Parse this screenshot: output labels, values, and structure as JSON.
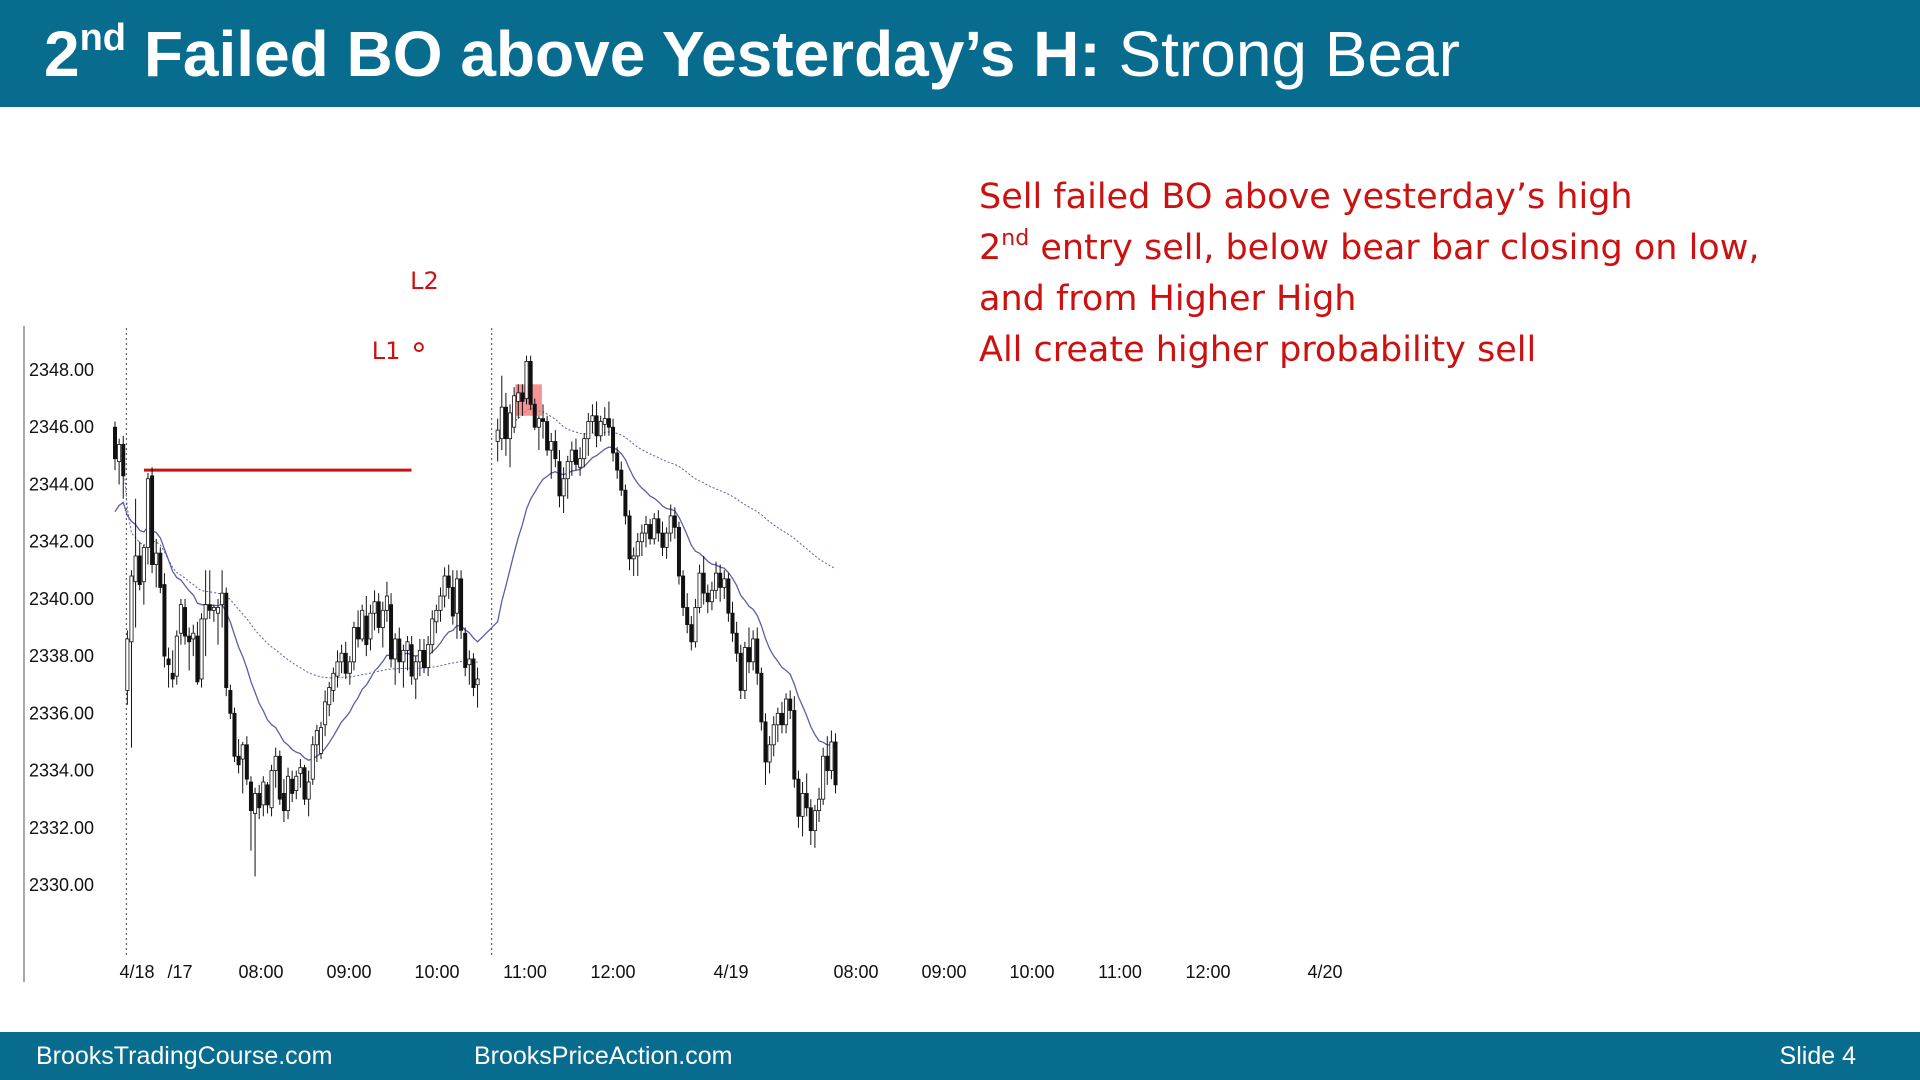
{
  "title": {
    "bold_prefix": "2",
    "bold_sup": "nd",
    "bold_main": " Failed BO above Yesterday’s H:",
    "normal": " Strong Bear"
  },
  "annotation": {
    "line1": "Sell failed BO above yesterday’s high",
    "line2_prefix": "2",
    "line2_sup": "nd",
    "line2_rest": " entry sell, below bear bar closing on low,",
    "line3": "and from Higher High",
    "line4": "All create higher probability sell"
  },
  "footer": {
    "left": "BrooksTradingCourse.com",
    "center": "BrooksPriceAction.com",
    "right": "Slide  4"
  },
  "colors": {
    "header_bg": "#086c8f",
    "annotation_red": "#cc1111",
    "ema_line": "#5b5fa8",
    "highlight_box": "#f07070"
  },
  "chart_data": {
    "type": "candlestick",
    "title": "",
    "xlabel": "",
    "ylabel": "",
    "ylim": [
      2328.0,
      2352.0
    ],
    "y_ticks": [
      "2348.00",
      "2346.00",
      "2344.00",
      "2342.00",
      "2340.00",
      "2338.00",
      "2336.00",
      "2334.00",
      "2332.00",
      "2330.00"
    ],
    "x_ticks": [
      "4/18",
      "/17",
      "08:00",
      "09:00",
      "10:00",
      "11:00",
      "12:00",
      "4/19",
      "08:00",
      "09:00",
      "10:00",
      "11:00",
      "12:00",
      "4/20"
    ],
    "markers": [
      {
        "label": "L1",
        "bar": 73
      },
      {
        "label": "L2",
        "bar": 76
      }
    ],
    "yesterday_high_line": {
      "value": 2344.5,
      "from_bar": 8,
      "to_bar": 71
    },
    "sessions": [
      {
        "label": "4/18",
        "ohlc": [
          [
            2346.0,
            2346.2,
            2344.5,
            2344.9
          ],
          [
            2344.8,
            2345.6,
            2344.0,
            2345.4
          ],
          [
            2345.4,
            2345.7,
            2343.5,
            2344.3
          ],
          [
            2336.8,
            2338.9,
            2336.3,
            2338.6
          ],
          [
            2338.5,
            2341.0,
            2334.8,
            2340.8
          ],
          [
            2340.6,
            2343.5,
            2339.0,
            2341.5
          ],
          [
            2341.5,
            2342.0,
            2340.3,
            2340.5
          ],
          [
            2340.6,
            2341.9,
            2339.8,
            2341.8
          ],
          [
            2341.8,
            2344.4,
            2341.2,
            2344.2
          ],
          [
            2344.3,
            2344.6,
            2340.9,
            2341.2
          ],
          [
            2341.2,
            2342.1,
            2340.4,
            2341.6
          ],
          [
            2341.6,
            2341.8,
            2340.2,
            2340.4
          ],
          [
            2340.5,
            2340.9,
            2337.6,
            2338.0
          ],
          [
            2337.9,
            2338.3,
            2336.9,
            2337.7
          ],
          [
            2337.4,
            2338.2,
            2336.9,
            2337.2
          ],
          [
            2337.3,
            2338.9,
            2337.0,
            2338.7
          ],
          [
            2338.8,
            2340.0,
            2338.4,
            2339.8
          ],
          [
            2339.7,
            2340.0,
            2338.4,
            2338.7
          ],
          [
            2338.7,
            2339.0,
            2337.5,
            2338.5
          ],
          [
            2338.6,
            2339.1,
            2338.0,
            2338.8
          ],
          [
            2338.7,
            2339.2,
            2337.0,
            2337.1
          ],
          [
            2337.2,
            2339.5,
            2336.9,
            2339.3
          ],
          [
            2339.3,
            2341.0,
            2338.0,
            2339.8
          ],
          [
            2339.8,
            2341.0,
            2339.3,
            2339.6
          ],
          [
            2339.6,
            2339.8,
            2339.2,
            2339.7
          ],
          [
            2339.5,
            2340.0,
            2338.4,
            2339.7
          ],
          [
            2339.8,
            2341.0,
            2339.0,
            2340.2
          ],
          [
            2340.2,
            2340.4,
            2336.6,
            2336.9
          ],
          [
            2336.8,
            2337.0,
            2335.8,
            2336.0
          ],
          [
            2336.0,
            2336.2,
            2334.3,
            2334.5
          ],
          [
            2334.5,
            2335.1,
            2333.9,
            2334.2
          ],
          [
            2334.4,
            2335.0,
            2333.2,
            2334.9
          ],
          [
            2334.9,
            2335.2,
            2333.5,
            2333.7
          ],
          [
            2333.6,
            2333.8,
            2331.2,
            2332.6
          ],
          [
            2332.5,
            2333.4,
            2330.3,
            2333.2
          ],
          [
            2333.2,
            2333.5,
            2332.3,
            2332.7
          ],
          [
            2332.8,
            2333.8,
            2332.4,
            2333.6
          ],
          [
            2333.5,
            2333.6,
            2332.5,
            2332.8
          ],
          [
            2332.7,
            2334.2,
            2332.4,
            2334.0
          ],
          [
            2334.0,
            2334.8,
            2333.4,
            2334.5
          ],
          [
            2334.5,
            2334.7,
            2332.8,
            2333.0
          ],
          [
            2333.2,
            2333.7,
            2332.2,
            2332.6
          ],
          [
            2332.6,
            2334.1,
            2332.3,
            2333.8
          ],
          [
            2333.7,
            2334.0,
            2332.9,
            2333.2
          ],
          [
            2333.3,
            2334.0,
            2333.0,
            2333.8
          ],
          [
            2333.9,
            2334.4,
            2333.4,
            2334.1
          ],
          [
            2334.1,
            2334.2,
            2332.8,
            2333.0
          ],
          [
            2333.0,
            2334.0,
            2332.4,
            2333.6
          ],
          [
            2333.7,
            2335.2,
            2333.5,
            2334.9
          ],
          [
            2334.9,
            2335.6,
            2334.3,
            2335.4
          ],
          [
            2334.6,
            2335.7,
            2334.4,
            2335.5
          ],
          [
            2335.6,
            2336.8,
            2335.2,
            2336.4
          ],
          [
            2336.3,
            2337.1,
            2335.9,
            2336.9
          ],
          [
            2336.8,
            2337.6,
            2336.4,
            2337.4
          ],
          [
            2337.3,
            2338.2,
            2336.9,
            2337.8
          ],
          [
            2337.8,
            2338.4,
            2337.4,
            2338.1
          ],
          [
            2338.1,
            2338.5,
            2337.2,
            2337.4
          ],
          [
            2337.4,
            2338.0,
            2337.0,
            2337.8
          ],
          [
            2337.8,
            2339.2,
            2337.5,
            2339.0
          ],
          [
            2339.0,
            2339.6,
            2338.3,
            2338.6
          ],
          [
            2338.6,
            2339.8,
            2338.5,
            2339.6
          ],
          [
            2339.4,
            2340.1,
            2338.0,
            2338.4
          ],
          [
            2338.6,
            2339.8,
            2338.2,
            2339.5
          ],
          [
            2339.5,
            2340.3,
            2338.9,
            2339.9
          ],
          [
            2339.9,
            2340.2,
            2338.8,
            2339.0
          ],
          [
            2339.0,
            2339.9,
            2338.3,
            2339.6
          ],
          [
            2339.6,
            2340.6,
            2339.2,
            2340.1
          ],
          [
            2339.8,
            2340.2,
            2337.6,
            2337.9
          ],
          [
            2337.9,
            2338.8,
            2337.0,
            2338.6
          ],
          [
            2338.6,
            2339.0,
            2337.4,
            2337.8
          ],
          [
            2337.8,
            2338.4,
            2336.9,
            2338.2
          ],
          [
            2338.2,
            2338.7,
            2337.5,
            2338.5
          ],
          [
            2338.4,
            2338.7,
            2337.0,
            2337.3
          ],
          [
            2337.2,
            2338.0,
            2336.5,
            2337.8
          ],
          [
            2337.8,
            2338.6,
            2337.3,
            2338.2
          ],
          [
            2338.2,
            2338.6,
            2337.4,
            2337.6
          ],
          [
            2337.6,
            2338.7,
            2337.3,
            2338.4
          ],
          [
            2338.4,
            2339.6,
            2338.1,
            2339.3
          ],
          [
            2339.2,
            2339.8,
            2338.8,
            2339.6
          ],
          [
            2339.6,
            2340.4,
            2339.2,
            2340.1
          ],
          [
            2340.1,
            2341.1,
            2339.7,
            2340.8
          ],
          [
            2340.8,
            2341.2,
            2340.0,
            2340.4
          ],
          [
            2340.4,
            2341.0,
            2339.1,
            2339.4
          ],
          [
            2339.5,
            2341.0,
            2338.6,
            2340.7
          ],
          [
            2340.7,
            2341.0,
            2338.6,
            2338.9
          ],
          [
            2338.8,
            2339.0,
            2337.3,
            2337.6
          ],
          [
            2337.7,
            2338.2,
            2337.0,
            2337.9
          ],
          [
            2337.9,
            2338.1,
            2336.6,
            2336.9
          ],
          [
            2337.0,
            2337.6,
            2336.2,
            2337.2
          ]
        ]
      },
      {
        "label": "4/19",
        "ohlc": [
          [
            2345.5,
            2346.3,
            2344.8,
            2345.9
          ],
          [
            2345.6,
            2347.8,
            2345.2,
            2346.7
          ],
          [
            2346.7,
            2347.2,
            2345.0,
            2345.6
          ],
          [
            2345.6,
            2346.8,
            2344.6,
            2346.5
          ],
          [
            2346.0,
            2347.4,
            2345.8,
            2347.1
          ],
          [
            2346.9,
            2347.5,
            2346.3,
            2347.2
          ],
          [
            2347.2,
            2347.5,
            2346.4,
            2346.9
          ],
          [
            2347.0,
            2348.5,
            2346.8,
            2348.3
          ],
          [
            2348.3,
            2348.5,
            2346.6,
            2346.8
          ],
          [
            2346.8,
            2347.0,
            2345.9,
            2346.0
          ],
          [
            2346.0,
            2346.4,
            2345.2,
            2346.3
          ],
          [
            2346.3,
            2346.8,
            2345.6,
            2346.2
          ],
          [
            2346.2,
            2346.4,
            2345.0,
            2345.2
          ],
          [
            2345.2,
            2345.8,
            2344.2,
            2345.5
          ],
          [
            2345.5,
            2345.9,
            2344.6,
            2344.9
          ],
          [
            2344.8,
            2345.2,
            2343.2,
            2343.6
          ],
          [
            2343.6,
            2344.6,
            2343.0,
            2344.2
          ],
          [
            2344.2,
            2345.0,
            2343.5,
            2344.8
          ],
          [
            2344.8,
            2345.5,
            2344.3,
            2345.2
          ],
          [
            2345.2,
            2345.6,
            2344.5,
            2344.7
          ],
          [
            2344.6,
            2345.3,
            2344.3,
            2344.9
          ],
          [
            2344.9,
            2345.8,
            2344.6,
            2345.6
          ],
          [
            2345.6,
            2346.5,
            2345.0,
            2346.2
          ],
          [
            2346.2,
            2346.8,
            2345.8,
            2346.4
          ],
          [
            2346.4,
            2346.9,
            2345.3,
            2345.7
          ],
          [
            2345.7,
            2346.4,
            2345.5,
            2346.2
          ],
          [
            2346.1,
            2346.7,
            2345.7,
            2346.3
          ],
          [
            2346.3,
            2346.9,
            2345.7,
            2346.0
          ],
          [
            2346.0,
            2346.3,
            2344.8,
            2345.1
          ],
          [
            2345.1,
            2345.3,
            2344.2,
            2344.5
          ],
          [
            2344.5,
            2344.8,
            2343.6,
            2343.8
          ],
          [
            2343.8,
            2344.0,
            2342.6,
            2342.9
          ],
          [
            2342.9,
            2343.1,
            2341.0,
            2341.4
          ],
          [
            2341.4,
            2341.8,
            2340.8,
            2341.5
          ],
          [
            2341.5,
            2342.3,
            2340.8,
            2342.0
          ],
          [
            2342.0,
            2342.6,
            2341.5,
            2342.3
          ],
          [
            2342.3,
            2342.9,
            2341.8,
            2342.6
          ],
          [
            2342.6,
            2342.8,
            2341.9,
            2342.1
          ],
          [
            2342.1,
            2343.0,
            2341.9,
            2342.8
          ],
          [
            2342.8,
            2343.1,
            2342.0,
            2342.3
          ],
          [
            2342.3,
            2342.7,
            2341.5,
            2341.8
          ],
          [
            2341.8,
            2342.5,
            2341.4,
            2342.3
          ],
          [
            2342.3,
            2343.3,
            2342.0,
            2342.9
          ],
          [
            2342.9,
            2343.2,
            2342.1,
            2342.5
          ],
          [
            2342.5,
            2342.7,
            2340.5,
            2340.8
          ],
          [
            2340.8,
            2341.0,
            2339.4,
            2339.7
          ],
          [
            2339.7,
            2340.2,
            2338.8,
            2339.1
          ],
          [
            2339.1,
            2339.4,
            2338.2,
            2338.5
          ],
          [
            2338.5,
            2340.0,
            2338.3,
            2339.7
          ],
          [
            2339.7,
            2341.2,
            2339.5,
            2340.9
          ],
          [
            2340.9,
            2341.5,
            2339.8,
            2340.2
          ],
          [
            2340.2,
            2340.5,
            2339.5,
            2339.9
          ],
          [
            2339.9,
            2340.6,
            2339.6,
            2340.3
          ],
          [
            2340.3,
            2341.3,
            2340.0,
            2340.9
          ],
          [
            2340.9,
            2341.2,
            2339.9,
            2340.4
          ],
          [
            2340.4,
            2341.0,
            2340.0,
            2340.7
          ],
          [
            2340.7,
            2340.9,
            2339.2,
            2339.5
          ],
          [
            2339.5,
            2339.9,
            2338.5,
            2338.8
          ],
          [
            2338.8,
            2339.2,
            2337.8,
            2338.1
          ],
          [
            2338.1,
            2338.4,
            2336.5,
            2336.8
          ],
          [
            2336.8,
            2338.5,
            2336.5,
            2338.3
          ],
          [
            2338.3,
            2339.0,
            2337.4,
            2337.8
          ],
          [
            2337.8,
            2338.9,
            2337.5,
            2338.6
          ],
          [
            2338.6,
            2339.0,
            2337.0,
            2337.4
          ],
          [
            2337.4,
            2337.6,
            2335.4,
            2335.7
          ],
          [
            2335.7,
            2336.0,
            2333.5,
            2334.3
          ],
          [
            2334.3,
            2335.2,
            2333.9,
            2334.9
          ],
          [
            2334.9,
            2335.9,
            2334.5,
            2335.6
          ],
          [
            2335.6,
            2336.2,
            2335.0,
            2336.0
          ],
          [
            2336.0,
            2336.4,
            2335.3,
            2335.6
          ],
          [
            2335.6,
            2336.7,
            2335.3,
            2336.5
          ],
          [
            2336.5,
            2336.8,
            2335.8,
            2336.1
          ],
          [
            2336.1,
            2336.6,
            2333.4,
            2333.7
          ],
          [
            2333.7,
            2334.0,
            2332.0,
            2332.4
          ],
          [
            2332.4,
            2333.6,
            2331.7,
            2333.2
          ],
          [
            2333.2,
            2333.9,
            2332.4,
            2332.7
          ],
          [
            2332.7,
            2333.0,
            2331.4,
            2331.9
          ],
          [
            2331.9,
            2332.8,
            2331.3,
            2332.6
          ],
          [
            2332.6,
            2333.4,
            2332.2,
            2333.0
          ],
          [
            2333.0,
            2334.8,
            2332.8,
            2334.5
          ],
          [
            2334.5,
            2335.2,
            2333.5,
            2334.0
          ],
          [
            2334.0,
            2335.4,
            2333.7,
            2335.0
          ],
          [
            2335.0,
            2335.3,
            2333.2,
            2333.5
          ]
        ]
      }
    ]
  }
}
